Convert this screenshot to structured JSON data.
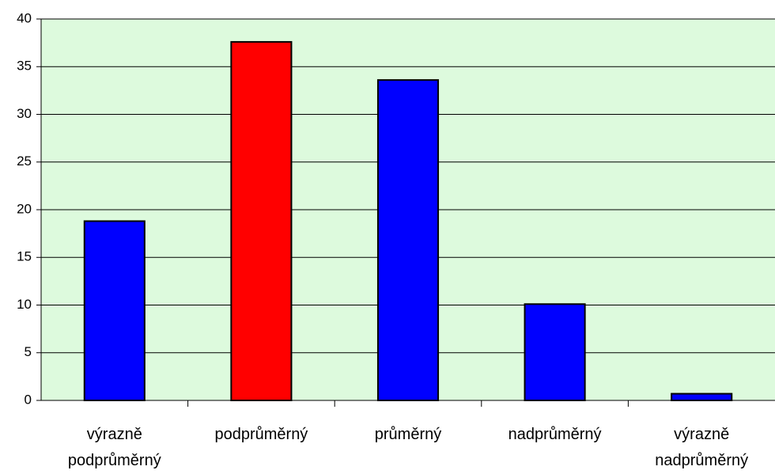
{
  "chart_data": {
    "type": "bar",
    "categories": [
      "výrazně podprůměrný",
      "podprůměrný",
      "průměrný",
      "nadprůměrný",
      "výrazně nadprůměrný"
    ],
    "values": [
      18.8,
      37.6,
      33.6,
      10.1,
      0.7
    ],
    "colors": [
      "#0000ff",
      "#ff0000",
      "#0000ff",
      "#0000ff",
      "#0000ff"
    ],
    "ylim": [
      0,
      40
    ],
    "yticks": [
      0,
      5,
      10,
      15,
      20,
      25,
      30,
      35,
      40
    ],
    "grid": true
  }
}
